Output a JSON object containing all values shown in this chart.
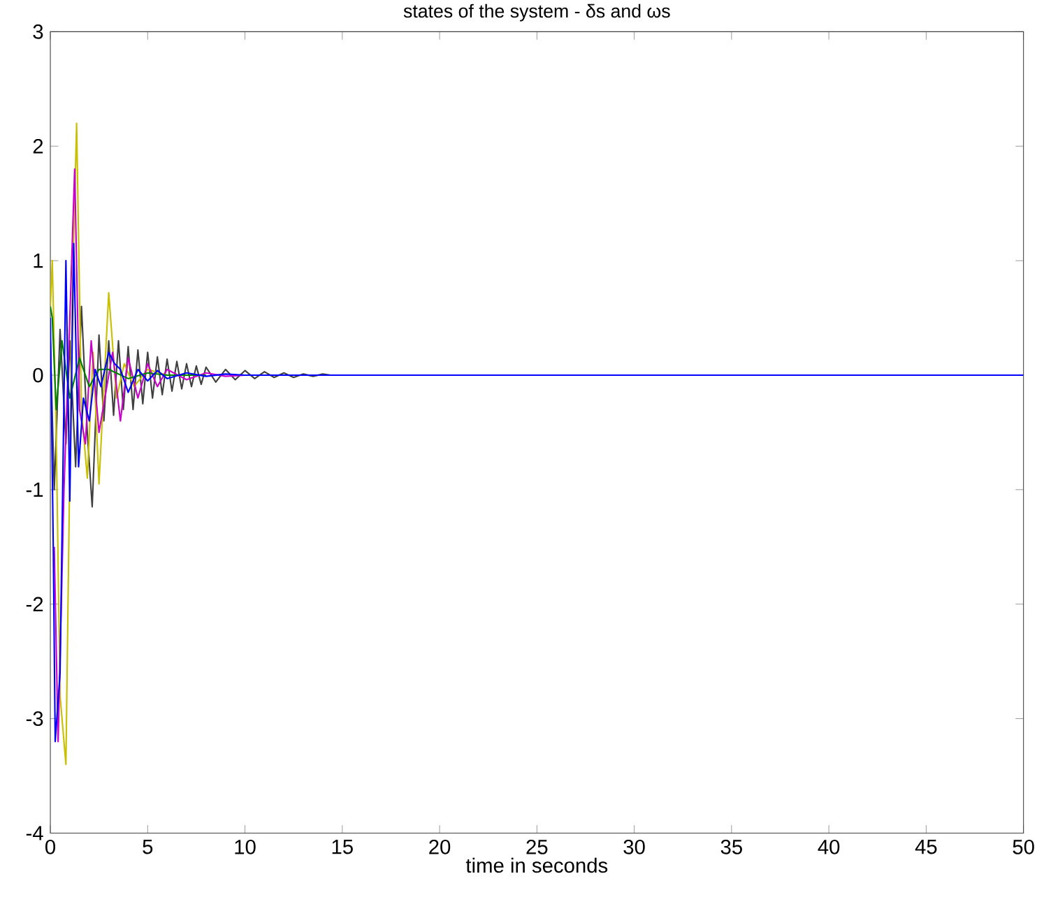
{
  "chart_data": {
    "type": "line",
    "title": "states of the system - δs and ωs",
    "xlabel": "time in seconds",
    "xlim": [
      0,
      50
    ],
    "ylim": [
      -4,
      3
    ],
    "xticks": [
      0,
      5,
      10,
      15,
      20,
      25,
      30,
      35,
      40,
      45,
      50
    ],
    "yticks": [
      -4,
      -3,
      -2,
      -1,
      0,
      1,
      2,
      3
    ],
    "grid": false,
    "marker": "none",
    "line_style": "solid",
    "series": [
      {
        "color": "#404040",
        "x": [
          0,
          0.2,
          0.5,
          0.8,
          1.0,
          1.3,
          1.6,
          1.9,
          2.15,
          2.5,
          2.75,
          3.0,
          3.25,
          3.5,
          3.75,
          4.0,
          4.25,
          4.5,
          4.75,
          5.0,
          5.25,
          5.5,
          5.75,
          6.0,
          6.25,
          6.5,
          6.75,
          7.0,
          7.25,
          7.5,
          7.75,
          8.0,
          8.5,
          9.0,
          9.5,
          10.0,
          10.5,
          11.0,
          11.5,
          12.0,
          12.5,
          13.0,
          13.5,
          14.0,
          14.4
        ],
        "values": [
          0.3,
          -1.0,
          0.4,
          -0.6,
          0.3,
          -0.8,
          0.6,
          -0.5,
          -1.15,
          0.35,
          -0.4,
          0.3,
          -0.35,
          0.3,
          -0.3,
          0.25,
          -0.3,
          0.22,
          -0.25,
          0.2,
          -0.2,
          0.16,
          -0.17,
          0.14,
          -0.14,
          0.12,
          -0.12,
          0.1,
          -0.1,
          0.08,
          -0.08,
          0.07,
          -0.06,
          0.05,
          -0.04,
          0.04,
          -0.03,
          0.03,
          -0.02,
          0.02,
          -0.02,
          0.01,
          -0.01,
          0.01,
          0
        ]
      },
      {
        "color": "#c8c000",
        "x": [
          0,
          0.1,
          0.3,
          0.5,
          0.8,
          1.1,
          1.35,
          1.6,
          1.9,
          2.2,
          2.5,
          3.0,
          3.4,
          3.8,
          4.3,
          5.0,
          6.0,
          7.0
        ],
        "values": [
          0.6,
          1.0,
          -0.5,
          -2.8,
          -3.4,
          0.5,
          2.2,
          -0.3,
          -0.9,
          0.2,
          -0.95,
          0.72,
          -0.2,
          0.1,
          -0.1,
          0.05,
          0,
          0
        ]
      },
      {
        "color": "#cc00cc",
        "x": [
          0.2,
          0.4,
          0.7,
          1.0,
          1.25,
          1.5,
          1.8,
          2.1,
          2.5,
          2.8,
          3.2,
          3.6,
          4.0,
          4.5,
          5.0,
          5.5,
          6.0,
          7.0,
          8.0,
          9.0,
          10.0
        ],
        "values": [
          -1.5,
          -3.2,
          -1.0,
          0.5,
          1.8,
          -0.3,
          -0.6,
          0.3,
          -0.5,
          -0.2,
          0.2,
          -0.4,
          0.15,
          -0.2,
          0.1,
          -0.1,
          0.05,
          -0.04,
          0.02,
          -0.01,
          0
        ]
      },
      {
        "color": "#008000",
        "x": [
          0,
          0.1,
          0.3,
          0.6,
          1.0,
          1.5,
          2.0,
          2.5,
          3.0,
          4.0,
          5.0,
          6.0,
          8.0
        ],
        "values": [
          0.6,
          0.5,
          -0.3,
          0.3,
          -0.2,
          0.15,
          -0.1,
          0.05,
          0.05,
          -0.03,
          0.02,
          0,
          0
        ]
      },
      {
        "color": "#0000ff",
        "x": [
          0,
          0.15,
          0.25,
          0.5,
          0.8,
          1.0,
          1.2,
          1.45,
          1.7,
          2.0,
          2.3,
          2.6,
          3.0,
          3.3,
          3.6,
          4.0,
          4.5,
          5.0,
          5.5,
          6.0,
          7.0,
          8.0,
          9.0,
          10.0,
          12.0,
          15.0,
          50.0
        ],
        "values": [
          0.5,
          -1.5,
          -3.2,
          -2.6,
          1.0,
          -1.1,
          1.15,
          -0.8,
          -0.2,
          -0.4,
          0.05,
          -0.1,
          0.2,
          0.1,
          0.05,
          -0.15,
          0.05,
          -0.05,
          0.04,
          -0.03,
          0.02,
          -0.01,
          0.01,
          0,
          0,
          0,
          0
        ]
      }
    ]
  }
}
